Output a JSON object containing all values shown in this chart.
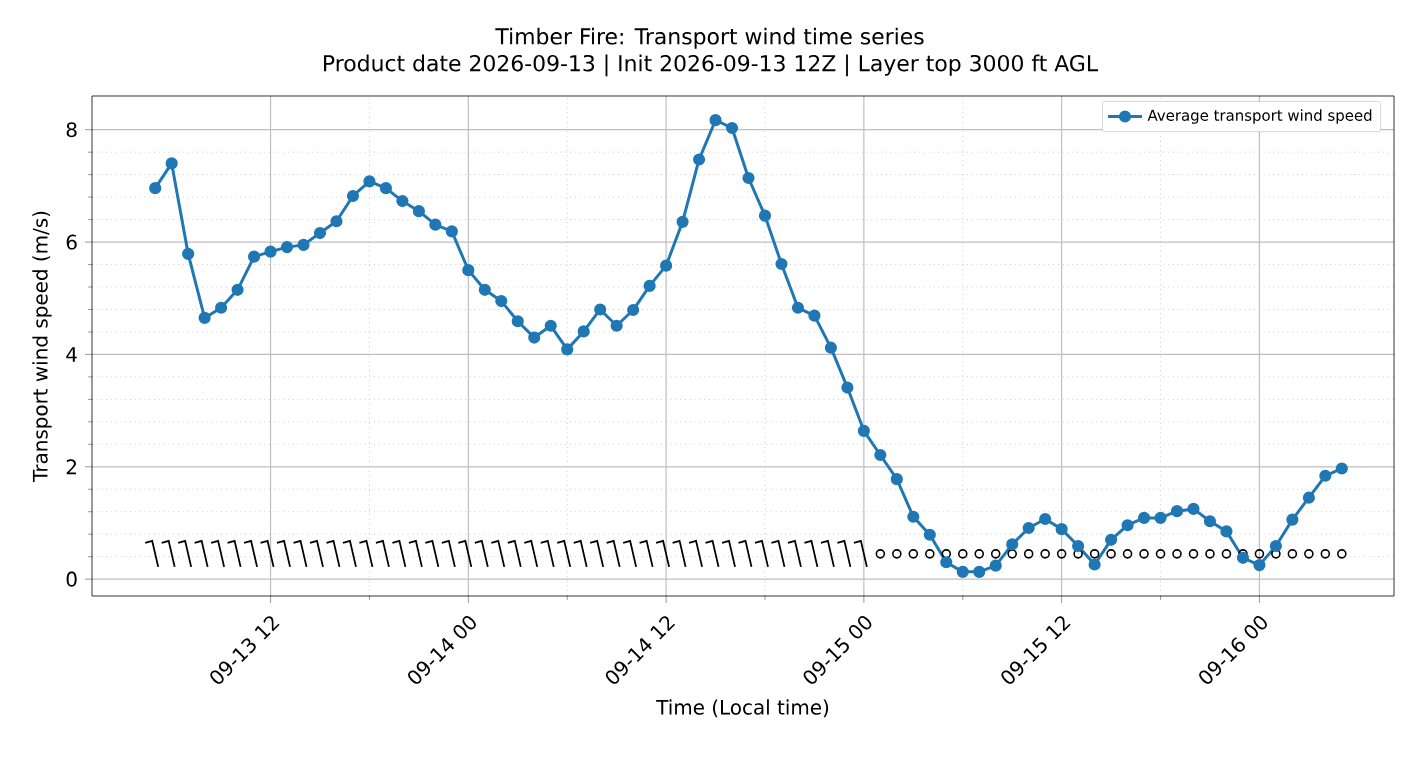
{
  "chart_data": {
    "type": "line",
    "title": "Timber Fire: Transport wind time series",
    "subtitle": "Product date 2026-09-13 | Init 2026-09-13 12Z | Layer top 3000 ft AGL",
    "xlabel": "Time (Local time)",
    "ylabel": "Transport wind speed (m/s)",
    "x": [
      "2026-09-13T05:00",
      "2026-09-13T06:00",
      "2026-09-13T07:00",
      "2026-09-13T08:00",
      "2026-09-13T09:00",
      "2026-09-13T10:00",
      "2026-09-13T11:00",
      "2026-09-13T12:00",
      "2026-09-13T13:00",
      "2026-09-13T14:00",
      "2026-09-13T15:00",
      "2026-09-13T16:00",
      "2026-09-13T17:00",
      "2026-09-13T18:00",
      "2026-09-13T19:00",
      "2026-09-13T20:00",
      "2026-09-13T21:00",
      "2026-09-13T22:00",
      "2026-09-13T23:00",
      "2026-09-14T00:00",
      "2026-09-14T01:00",
      "2026-09-14T02:00",
      "2026-09-14T03:00",
      "2026-09-14T04:00",
      "2026-09-14T05:00",
      "2026-09-14T06:00",
      "2026-09-14T07:00",
      "2026-09-14T08:00",
      "2026-09-14T09:00",
      "2026-09-14T10:00",
      "2026-09-14T11:00",
      "2026-09-14T12:00",
      "2026-09-14T13:00",
      "2026-09-14T14:00",
      "2026-09-14T15:00",
      "2026-09-14T16:00",
      "2026-09-14T17:00",
      "2026-09-14T18:00",
      "2026-09-14T19:00",
      "2026-09-14T20:00",
      "2026-09-14T21:00",
      "2026-09-14T22:00",
      "2026-09-14T23:00",
      "2026-09-15T00:00",
      "2026-09-15T01:00",
      "2026-09-15T02:00",
      "2026-09-15T03:00",
      "2026-09-15T04:00",
      "2026-09-15T05:00",
      "2026-09-15T06:00",
      "2026-09-15T07:00",
      "2026-09-15T08:00",
      "2026-09-15T09:00",
      "2026-09-15T10:00",
      "2026-09-15T11:00",
      "2026-09-15T12:00",
      "2026-09-15T13:00",
      "2026-09-15T14:00",
      "2026-09-15T15:00",
      "2026-09-15T16:00",
      "2026-09-15T17:00",
      "2026-09-15T18:00",
      "2026-09-15T19:00",
      "2026-09-15T20:00",
      "2026-09-15T21:00",
      "2026-09-15T22:00",
      "2026-09-15T23:00",
      "2026-09-16T00:00",
      "2026-09-16T01:00",
      "2026-09-16T02:00",
      "2026-09-16T03:00",
      "2026-09-16T04:00",
      "2026-09-16T05:00"
    ],
    "series": [
      {
        "name": "Average transport wind speed",
        "color": "#1f77b4",
        "marker": "circle",
        "values": [
          6.96,
          7.4,
          5.79,
          4.65,
          4.83,
          5.15,
          5.74,
          5.83,
          5.91,
          5.95,
          6.16,
          6.37,
          6.82,
          7.08,
          6.96,
          6.73,
          6.55,
          6.31,
          6.19,
          5.5,
          5.15,
          4.95,
          4.59,
          4.3,
          4.51,
          4.09,
          4.41,
          4.8,
          4.51,
          4.79,
          5.22,
          5.58,
          6.36,
          7.47,
          8.17,
          8.03,
          7.14,
          6.47,
          5.61,
          4.83,
          4.69,
          4.12,
          3.41,
          2.64,
          2.21,
          1.78,
          1.11,
          0.79,
          0.3,
          0.13,
          0.13,
          0.24,
          0.62,
          0.91,
          1.07,
          0.89,
          0.59,
          0.26,
          0.7,
          0.96,
          1.09,
          1.09,
          1.21,
          1.25,
          1.03,
          0.85,
          0.38,
          0.25,
          0.59,
          1.06,
          1.45,
          1.84,
          1.97
        ]
      },
      {
        "type": "scatter",
        "color": "#000000",
        "marker": "cross",
        "values": [
          0.45,
          0.45,
          0.45,
          0.45,
          0.45,
          0.45,
          0.45,
          0.45,
          0.45,
          0.45,
          0.45,
          0.45,
          0.45,
          0.45,
          0.45,
          0.45,
          0.45,
          0.45,
          0.45,
          0.45,
          0.45,
          0.45,
          0.45,
          0.45,
          0.45,
          0.45,
          0.45,
          0.45,
          0.45,
          0.45,
          0.45,
          0.45,
          0.45,
          0.45,
          0.45,
          0.45,
          0.45,
          0.45,
          0.45,
          0.45,
          0.45,
          0.45,
          0.45,
          0.45,
          0.45,
          0.45,
          0.45,
          0.45,
          0.45,
          0.45,
          0.45,
          0.45,
          0.45,
          0.45,
          0.45,
          0.45,
          0.45,
          0.45,
          0.45,
          0.45,
          0.45,
          0.45,
          0.45,
          0.45,
          0.45,
          0.45,
          0.45,
          0.45,
          0.45,
          0.45,
          0.45,
          0.45,
          0.45
        ]
      }
    ],
    "xlim": [
      "2026-09-13T01:10",
      "2026-09-16T08:10"
    ],
    "xticks": [
      {
        "value": "2026-09-13T12:00",
        "label": "09-13 12"
      },
      {
        "value": "2026-09-14T00:00",
        "label": "09-14 00"
      },
      {
        "value": "2026-09-14T12:00",
        "label": "09-14 12"
      },
      {
        "value": "2026-09-15T00:00",
        "label": "09-15 00"
      },
      {
        "value": "2026-09-15T12:00",
        "label": "09-15 12"
      },
      {
        "value": "2026-09-16T00:00",
        "label": "09-16 00"
      }
    ],
    "ylim": [
      -0.3,
      8.6
    ],
    "yticks": [
      0,
      2,
      4,
      6,
      8
    ],
    "grid": true,
    "legend": "top right",
    "line_style": "solid"
  }
}
